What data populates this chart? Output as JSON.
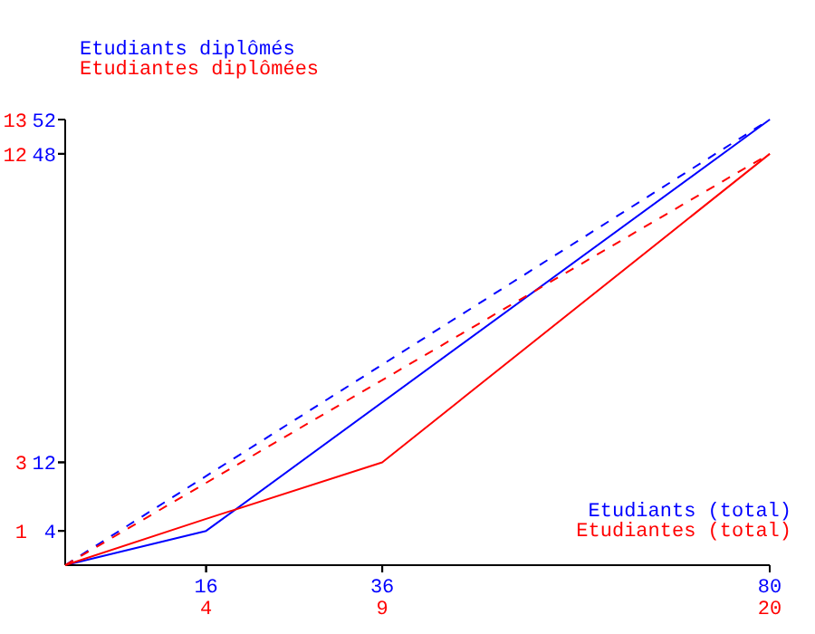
{
  "chart_data": [
    {
      "type": "line",
      "xlabel": "Etudiants (total)",
      "ylabel": "Etudiants diplômés",
      "xlim": [
        0,
        80
      ],
      "xticks": [
        16,
        36,
        80
      ],
      "ylim": [
        0,
        52
      ],
      "yticks": [
        4,
        12,
        48,
        52
      ],
      "series": [
        {
          "color": "#0000ff",
          "x": [
            0,
            16,
            80
          ],
          "values": [
            0,
            4,
            52
          ],
          "line_style": "solid"
        },
        {
          "color": "#0000ff",
          "x": [
            0,
            80
          ],
          "values": [
            0,
            52
          ],
          "line_style": "dashed"
        }
      ]
    },
    {
      "type": "line",
      "xlabel": "Etudiantes (total)",
      "ylabel": "Etudiantes diplômées",
      "xlim": [
        0,
        20
      ],
      "xticks": [
        4,
        9,
        20
      ],
      "ylim": [
        0,
        13
      ],
      "yticks": [
        1,
        3,
        12,
        13
      ],
      "series": [
        {
          "color": "#ff0000",
          "x": [
            0,
            4,
            9,
            20
          ],
          "values": [
            0,
            1.35,
            3,
            12
          ],
          "line_style": "solid"
        },
        {
          "color": "#ff0000",
          "x": [
            0,
            20
          ],
          "values": [
            0,
            12
          ],
          "line_style": "dashed"
        }
      ]
    }
  ]
}
